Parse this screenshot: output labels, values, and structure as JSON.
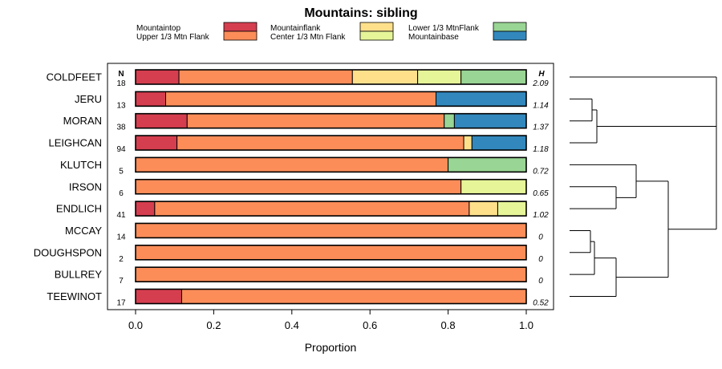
{
  "chart_data": {
    "type": "stacked-bar",
    "title": "Mountains: sibling",
    "xlabel": "Proportion",
    "xlim": [
      0,
      1
    ],
    "xticks": [
      "0.0",
      "0.2",
      "0.4",
      "0.6",
      "0.8",
      "1.0"
    ],
    "n_header": "N",
    "h_header": "H",
    "legend": [
      {
        "name": "Mountaintop",
        "color": "#d53e4f"
      },
      {
        "name": "Upper 1/3 Mtn Flank",
        "color": "#fc8d59"
      },
      {
        "name": "Mountainflank",
        "color": "#fee08b"
      },
      {
        "name": "Center 1/3 Mtn Flank",
        "color": "#e6f598"
      },
      {
        "name": "Lower 1/3 MtnFlank",
        "color": "#99d594"
      },
      {
        "name": "Mountainbase",
        "color": "#3288bd"
      }
    ],
    "rows": [
      {
        "label": "COLDFEET",
        "n": "18",
        "h": "2.09",
        "values": [
          0.111,
          0.444,
          0.167,
          0.111,
          0.167,
          0
        ]
      },
      {
        "label": "JERU",
        "n": "13",
        "h": "1.14",
        "values": [
          0.077,
          0.692,
          0,
          0,
          0,
          0.231
        ]
      },
      {
        "label": "MORAN",
        "n": "38",
        "h": "1.37",
        "values": [
          0.132,
          0.658,
          0,
          0,
          0.026,
          0.184
        ]
      },
      {
        "label": "LEIGHCAN",
        "n": "94",
        "h": "1.18",
        "values": [
          0.106,
          0.734,
          0.021,
          0,
          0,
          0.139
        ]
      },
      {
        "label": "KLUTCH",
        "n": "5",
        "h": "0.72",
        "values": [
          0,
          0.8,
          0,
          0,
          0.2,
          0
        ]
      },
      {
        "label": "IRSON",
        "n": "6",
        "h": "0.65",
        "values": [
          0,
          0.833,
          0,
          0.167,
          0,
          0
        ]
      },
      {
        "label": "ENDLICH",
        "n": "41",
        "h": "1.02",
        "values": [
          0.049,
          0.805,
          0.073,
          0.073,
          0,
          0
        ]
      },
      {
        "label": "MCCAY",
        "n": "14",
        "h": "0",
        "values": [
          0,
          1,
          0,
          0,
          0,
          0
        ]
      },
      {
        "label": "DOUGHSPON",
        "n": "2",
        "h": "0",
        "values": [
          0,
          1,
          0,
          0,
          0,
          0
        ]
      },
      {
        "label": "BULLREY",
        "n": "7",
        "h": "0",
        "values": [
          0,
          1,
          0,
          0,
          0,
          0
        ]
      },
      {
        "label": "TEEWINOT",
        "n": "17",
        "h": "0.52",
        "values": [
          0.118,
          0.882,
          0,
          0,
          0,
          0
        ]
      }
    ]
  }
}
